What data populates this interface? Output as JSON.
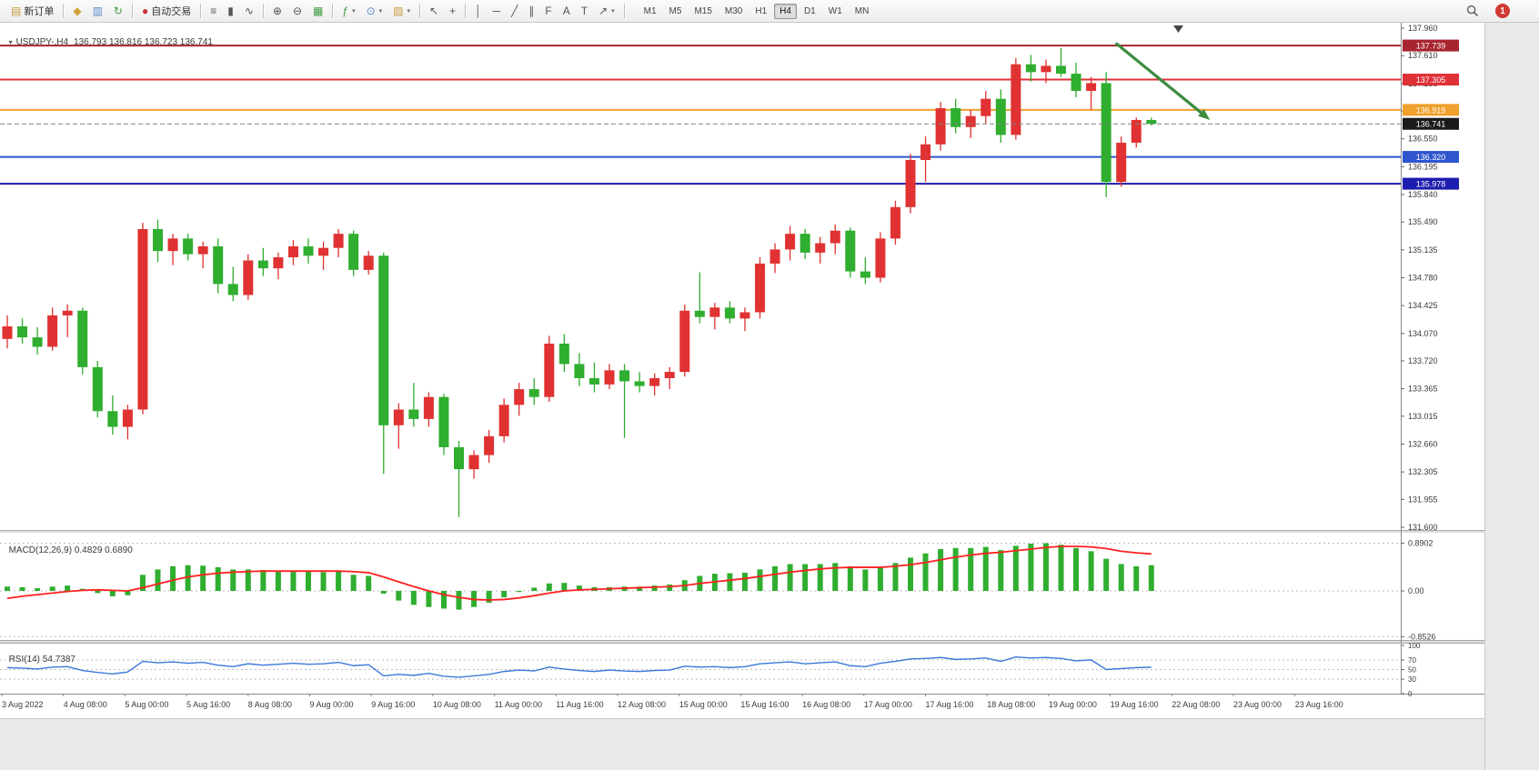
{
  "toolbar": {
    "groups": [
      {
        "items": [
          {
            "name": "new-order-button",
            "glyph": "▤",
            "color": "#c99b3f",
            "label": "新订单"
          }
        ]
      },
      {
        "items": [
          {
            "name": "charts-button",
            "glyph": "◆",
            "color": "#d4a23a"
          },
          {
            "name": "profiles-button",
            "glyph": "▥",
            "color": "#5b87c5"
          },
          {
            "name": "refresh-button",
            "glyph": "↻",
            "color": "#3f9d3f"
          }
        ]
      },
      {
        "items": [
          {
            "name": "auto-trading-button",
            "glyph": "●",
            "color": "#cc3333",
            "label": "自动交易"
          }
        ]
      },
      {
        "items": [
          {
            "name": "bar-chart-button",
            "glyph": "≡"
          },
          {
            "name": "candlestick-chart-button",
            "glyph": "▮"
          },
          {
            "name": "line-chart-button",
            "glyph": "∿"
          }
        ]
      },
      {
        "items": [
          {
            "name": "zoom-in-button",
            "glyph": "⊕"
          },
          {
            "name": "zoom-out-button",
            "glyph": "⊖"
          },
          {
            "name": "tile-windows-button",
            "glyph": "▦",
            "color": "#3f9d3f"
          }
        ]
      },
      {
        "items": [
          {
            "name": "indicators-button",
            "glyph": "ƒ",
            "color": "#3f9d3f",
            "dropdown": true
          },
          {
            "name": "periods-button",
            "glyph": "⊙",
            "color": "#5b87c5",
            "dropdown": true
          },
          {
            "name": "templates-button",
            "glyph": "▨",
            "color": "#c99b3f",
            "dropdown": true
          }
        ]
      },
      {
        "items": [
          {
            "name": "cursor-button",
            "glyph": "↖"
          },
          {
            "name": "crosshair-button",
            "glyph": "+"
          }
        ]
      },
      {
        "items": [
          {
            "name": "vertical-line-button",
            "glyph": "│"
          },
          {
            "name": "horizontal-line-button",
            "glyph": "─"
          },
          {
            "name": "trendline-button",
            "glyph": "╱"
          },
          {
            "name": "equidistant-channel-button",
            "glyph": "∥"
          },
          {
            "name": "fibonacci-button",
            "glyph": "F"
          },
          {
            "name": "text-button",
            "glyph": "A"
          },
          {
            "name": "label-button",
            "glyph": "T"
          },
          {
            "name": "arrow-objects-button",
            "glyph": "↗",
            "dropdown": true
          }
        ]
      }
    ],
    "timeframes": [
      "M1",
      "M5",
      "M15",
      "M30",
      "H1",
      "H4",
      "D1",
      "W1",
      "MN"
    ],
    "active_timeframe": "H4",
    "notification_badge": "1"
  },
  "chart": {
    "collapse_icon": "▾",
    "symbol_period": "USDJPY-,H4",
    "ohlc": "136.793 136.816 136.723 136.741",
    "macd_label": "MACD(12,26,9)",
    "macd_values": "0.4829 0.6890",
    "rsi_label": "RSI(14)",
    "rsi_value": "54.7387"
  },
  "chart_data": {
    "type": "candlestick",
    "symbol": "USDJPY-",
    "period": "H4",
    "price_axis": [
      "137.960",
      "137.610",
      "137.255",
      "136.905",
      "136.550",
      "136.195",
      "135.840",
      "135.490",
      "135.135",
      "134.780",
      "134.425",
      "134.070",
      "133.720",
      "133.365",
      "133.015",
      "132.660",
      "132.305",
      "131.955",
      "131.600"
    ],
    "time_axis": [
      "3 Aug 2022",
      "4 Aug 08:00",
      "5 Aug 00:00",
      "5 Aug 16:00",
      "8 Aug 08:00",
      "9 Aug 00:00",
      "9 Aug 16:00",
      "10 Aug 08:00",
      "11 Aug 00:00",
      "11 Aug 16:00",
      "12 Aug 08:00",
      "15 Aug 00:00",
      "15 Aug 16:00",
      "16 Aug 08:00",
      "17 Aug 00:00",
      "17 Aug 16:00",
      "18 Aug 08:00",
      "19 Aug 00:00",
      "19 Aug 16:00",
      "22 Aug 08:00",
      "23 Aug 00:00",
      "23 Aug 16:00"
    ],
    "levels": [
      {
        "price": 137.739,
        "label": "137.739",
        "color": "#a8242f"
      },
      {
        "price": 137.305,
        "label": "137.305",
        "color": "#e03038"
      },
      {
        "price": 136.919,
        "label": "136.919",
        "color": "#f0a02c"
      },
      {
        "price": 136.32,
        "label": "136.320",
        "color": "#2e55cc"
      },
      {
        "price": 135.978,
        "label": "135.978",
        "color": "#1c1cae"
      }
    ],
    "current_price": {
      "price": 136.741,
      "label": "136.741",
      "color": "#1a1a1a"
    },
    "candles": [
      [
        134.0,
        134.3,
        133.88,
        134.16
      ],
      [
        134.16,
        134.26,
        133.94,
        134.02
      ],
      [
        134.02,
        134.15,
        133.8,
        133.9
      ],
      [
        133.9,
        134.4,
        133.85,
        134.3
      ],
      [
        134.3,
        134.44,
        134.02,
        134.36
      ],
      [
        134.36,
        134.4,
        133.55,
        133.64
      ],
      [
        133.64,
        133.72,
        133.0,
        133.08
      ],
      [
        133.08,
        133.28,
        132.78,
        132.88
      ],
      [
        132.88,
        133.16,
        132.72,
        133.1
      ],
      [
        133.1,
        135.48,
        133.04,
        135.4
      ],
      [
        135.4,
        135.52,
        134.98,
        135.12
      ],
      [
        135.12,
        135.34,
        134.94,
        135.28
      ],
      [
        135.28,
        135.34,
        135.0,
        135.08
      ],
      [
        135.08,
        135.24,
        134.9,
        135.18
      ],
      [
        135.18,
        135.28,
        134.58,
        134.7
      ],
      [
        134.7,
        134.92,
        134.48,
        134.56
      ],
      [
        134.56,
        135.08,
        134.5,
        135.0
      ],
      [
        135.0,
        135.16,
        134.8,
        134.9
      ],
      [
        134.9,
        135.1,
        134.76,
        135.04
      ],
      [
        135.04,
        135.26,
        134.94,
        135.18
      ],
      [
        135.18,
        135.28,
        134.96,
        135.06
      ],
      [
        135.06,
        135.24,
        134.88,
        135.16
      ],
      [
        135.16,
        135.4,
        135.04,
        135.34
      ],
      [
        135.34,
        135.38,
        134.8,
        134.88
      ],
      [
        134.88,
        135.12,
        134.82,
        135.06
      ],
      [
        135.06,
        135.1,
        132.28,
        132.9
      ],
      [
        132.9,
        133.18,
        132.6,
        133.1
      ],
      [
        133.1,
        133.44,
        132.88,
        132.98
      ],
      [
        132.98,
        133.32,
        132.88,
        133.26
      ],
      [
        133.26,
        133.3,
        132.52,
        132.62
      ],
      [
        132.62,
        132.7,
        131.73,
        132.34
      ],
      [
        132.34,
        132.58,
        132.22,
        132.52
      ],
      [
        132.52,
        132.84,
        132.42,
        132.76
      ],
      [
        132.76,
        133.24,
        132.68,
        133.16
      ],
      [
        133.16,
        133.44,
        133.02,
        133.36
      ],
      [
        133.36,
        133.5,
        133.16,
        133.26
      ],
      [
        133.26,
        134.04,
        133.2,
        133.94
      ],
      [
        133.94,
        134.06,
        133.58,
        133.68
      ],
      [
        133.68,
        133.82,
        133.4,
        133.5
      ],
      [
        133.5,
        133.7,
        133.32,
        133.42
      ],
      [
        133.42,
        133.68,
        133.36,
        133.6
      ],
      [
        133.6,
        133.68,
        132.74,
        133.46
      ],
      [
        133.46,
        133.58,
        133.32,
        133.4
      ],
      [
        133.4,
        133.56,
        133.28,
        133.5
      ],
      [
        133.5,
        133.64,
        133.36,
        133.58
      ],
      [
        133.58,
        134.44,
        133.52,
        134.36
      ],
      [
        134.36,
        134.85,
        134.2,
        134.28
      ],
      [
        134.28,
        134.46,
        134.12,
        134.4
      ],
      [
        134.4,
        134.48,
        134.2,
        134.26
      ],
      [
        134.26,
        134.4,
        134.1,
        134.34
      ],
      [
        134.34,
        135.04,
        134.26,
        134.96
      ],
      [
        134.96,
        135.22,
        134.84,
        135.14
      ],
      [
        135.14,
        135.44,
        135.0,
        135.34
      ],
      [
        135.34,
        135.4,
        135.02,
        135.1
      ],
      [
        135.1,
        135.3,
        134.96,
        135.22
      ],
      [
        135.22,
        135.46,
        135.08,
        135.38
      ],
      [
        135.38,
        135.42,
        134.78,
        134.86
      ],
      [
        134.86,
        135.04,
        134.7,
        134.78
      ],
      [
        134.78,
        135.36,
        134.72,
        135.28
      ],
      [
        135.28,
        135.76,
        135.2,
        135.68
      ],
      [
        135.68,
        136.36,
        135.6,
        136.28
      ],
      [
        136.28,
        136.58,
        136.0,
        136.48
      ],
      [
        136.48,
        137.02,
        136.4,
        136.94
      ],
      [
        136.94,
        137.06,
        136.62,
        136.7
      ],
      [
        136.7,
        136.92,
        136.56,
        136.84
      ],
      [
        136.84,
        137.16,
        136.74,
        137.06
      ],
      [
        137.06,
        137.18,
        136.5,
        136.6
      ],
      [
        136.6,
        137.58,
        136.54,
        137.5
      ],
      [
        137.5,
        137.62,
        137.28,
        137.4
      ],
      [
        137.4,
        137.56,
        137.26,
        137.48
      ],
      [
        137.48,
        137.71,
        137.34,
        137.38
      ],
      [
        137.38,
        137.52,
        137.08,
        137.16
      ],
      [
        137.16,
        137.34,
        136.92,
        137.26
      ],
      [
        137.26,
        137.4,
        135.81,
        136.0
      ],
      [
        136.0,
        136.58,
        135.94,
        136.5
      ],
      [
        136.5,
        136.82,
        136.44,
        136.79
      ],
      [
        136.79,
        136.82,
        136.72,
        136.74
      ]
    ],
    "macd": {
      "scale": [
        "0.8902",
        "0.00",
        "-0.8526"
      ],
      "histogram": [
        0.08,
        0.07,
        0.05,
        0.08,
        0.1,
        0.04,
        -0.04,
        -0.1,
        -0.08,
        0.3,
        0.4,
        0.46,
        0.48,
        0.47,
        0.44,
        0.4,
        0.4,
        0.39,
        0.38,
        0.38,
        0.36,
        0.35,
        0.36,
        0.3,
        0.28,
        -0.05,
        -0.18,
        -0.26,
        -0.3,
        -0.33,
        -0.35,
        -0.3,
        -0.22,
        -0.12,
        -0.02,
        0.06,
        0.14,
        0.15,
        0.1,
        0.07,
        0.07,
        0.08,
        0.08,
        0.1,
        0.12,
        0.2,
        0.28,
        0.32,
        0.33,
        0.34,
        0.4,
        0.46,
        0.5,
        0.5,
        0.5,
        0.52,
        0.46,
        0.4,
        0.44,
        0.52,
        0.62,
        0.7,
        0.78,
        0.8,
        0.8,
        0.82,
        0.76,
        0.84,
        0.88,
        0.89,
        0.86,
        0.8,
        0.74,
        0.6,
        0.5,
        0.46,
        0.48
      ],
      "signal": [
        -0.14,
        -0.1,
        -0.07,
        -0.04,
        -0.01,
        0.01,
        0.02,
        0.01,
        0.0,
        0.06,
        0.13,
        0.2,
        0.26,
        0.3,
        0.33,
        0.35,
        0.36,
        0.37,
        0.37,
        0.37,
        0.37,
        0.37,
        0.37,
        0.36,
        0.34,
        0.26,
        0.17,
        0.08,
        0.0,
        -0.07,
        -0.12,
        -0.16,
        -0.17,
        -0.16,
        -0.13,
        -0.09,
        -0.04,
        0.0,
        0.02,
        0.03,
        0.04,
        0.05,
        0.06,
        0.07,
        0.08,
        0.1,
        0.14,
        0.17,
        0.2,
        0.23,
        0.27,
        0.31,
        0.35,
        0.38,
        0.41,
        0.43,
        0.44,
        0.44,
        0.44,
        0.46,
        0.49,
        0.53,
        0.58,
        0.63,
        0.67,
        0.7,
        0.72,
        0.75,
        0.78,
        0.81,
        0.83,
        0.83,
        0.82,
        0.79,
        0.74,
        0.71,
        0.69
      ]
    },
    "rsi": {
      "scale": [
        "100",
        "70",
        "50",
        "30",
        "0"
      ],
      "levels": [
        70,
        50,
        30
      ],
      "values": [
        54,
        53,
        51,
        55,
        56,
        48,
        44,
        41,
        45,
        67,
        64,
        66,
        63,
        65,
        59,
        56,
        62,
        59,
        61,
        63,
        61,
        62,
        65,
        58,
        60,
        37,
        40,
        38,
        42,
        36,
        34,
        37,
        40,
        46,
        49,
        47,
        55,
        51,
        48,
        46,
        49,
        47,
        46,
        48,
        49,
        57,
        55,
        56,
        54,
        56,
        62,
        64,
        66,
        62,
        64,
        66,
        58,
        56,
        63,
        67,
        72,
        73,
        75,
        71,
        72,
        74,
        67,
        76,
        74,
        75,
        73,
        68,
        70,
        50,
        52,
        54,
        54.74
      ]
    },
    "trend_arrow": {
      "from_bar": 73.7,
      "from_price": 137.76,
      "to_bar": 79.9,
      "to_price": 136.79,
      "color": "#3d8c40"
    },
    "colors": {
      "up": "#e03232",
      "down": "#2fae2f",
      "macd_histogram": "#2fae2f",
      "macd_signal": "#ff2020",
      "rsi_line": "#3c78d8"
    }
  }
}
